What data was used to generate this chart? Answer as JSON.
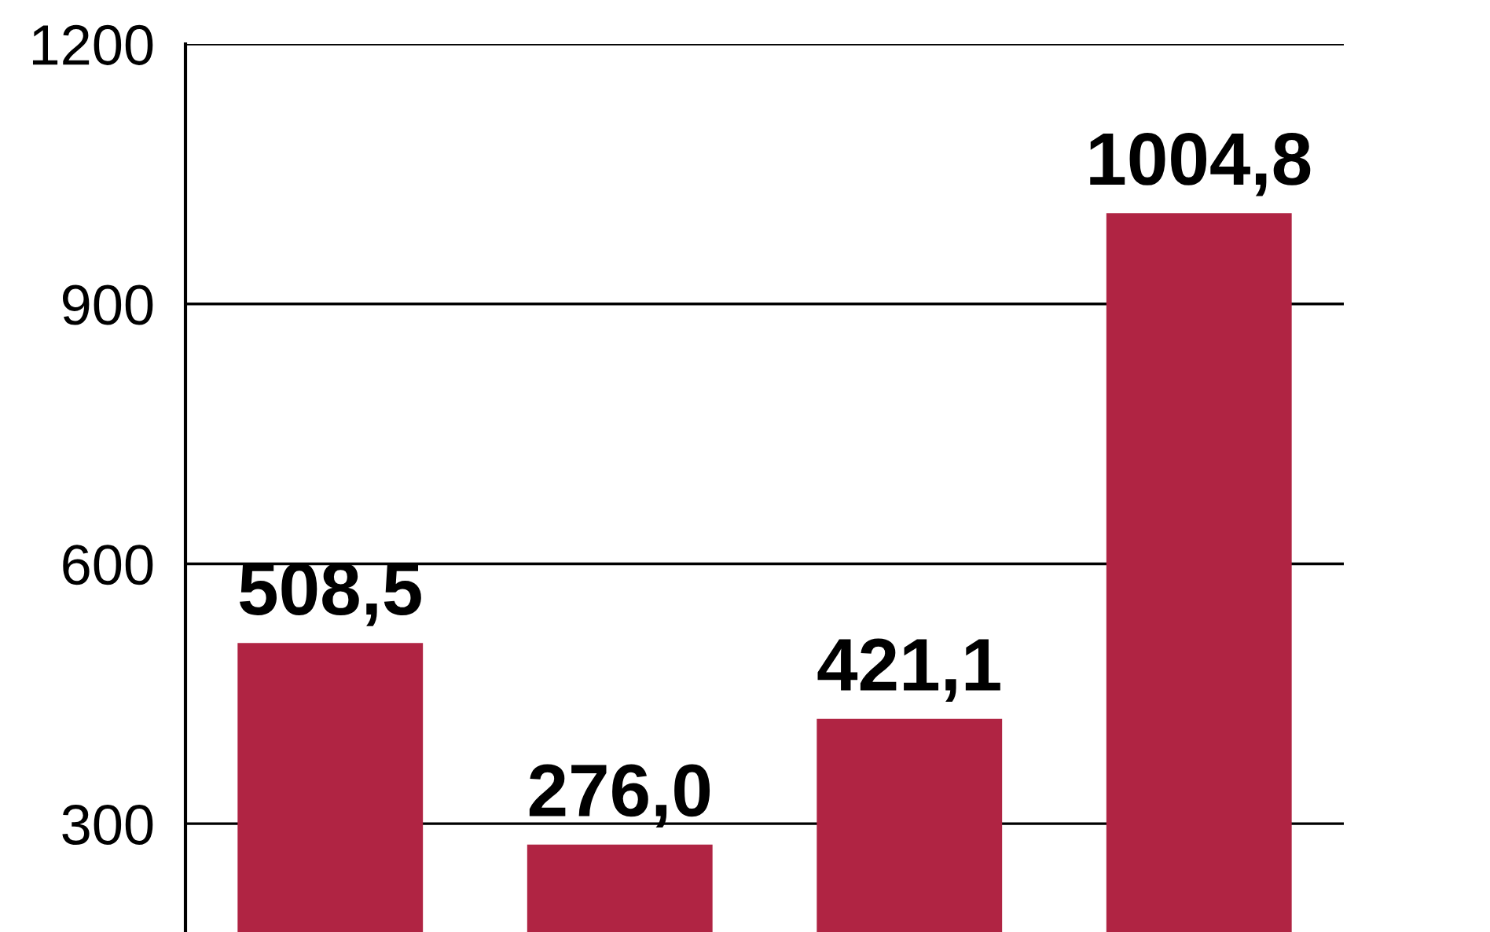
{
  "chart_data": {
    "type": "bar",
    "categories": [
      null,
      null,
      null,
      null
    ],
    "values": [
      508.5,
      276.0,
      421.1,
      1004.8
    ],
    "value_labels": [
      "508,5",
      "276,0",
      "421,1",
      "1004,8"
    ],
    "color": "#b02443",
    "ylim": [
      175,
      1200
    ],
    "yticks": [
      300,
      600,
      900,
      1200
    ],
    "grid": "y",
    "tick_labels": "y"
  }
}
